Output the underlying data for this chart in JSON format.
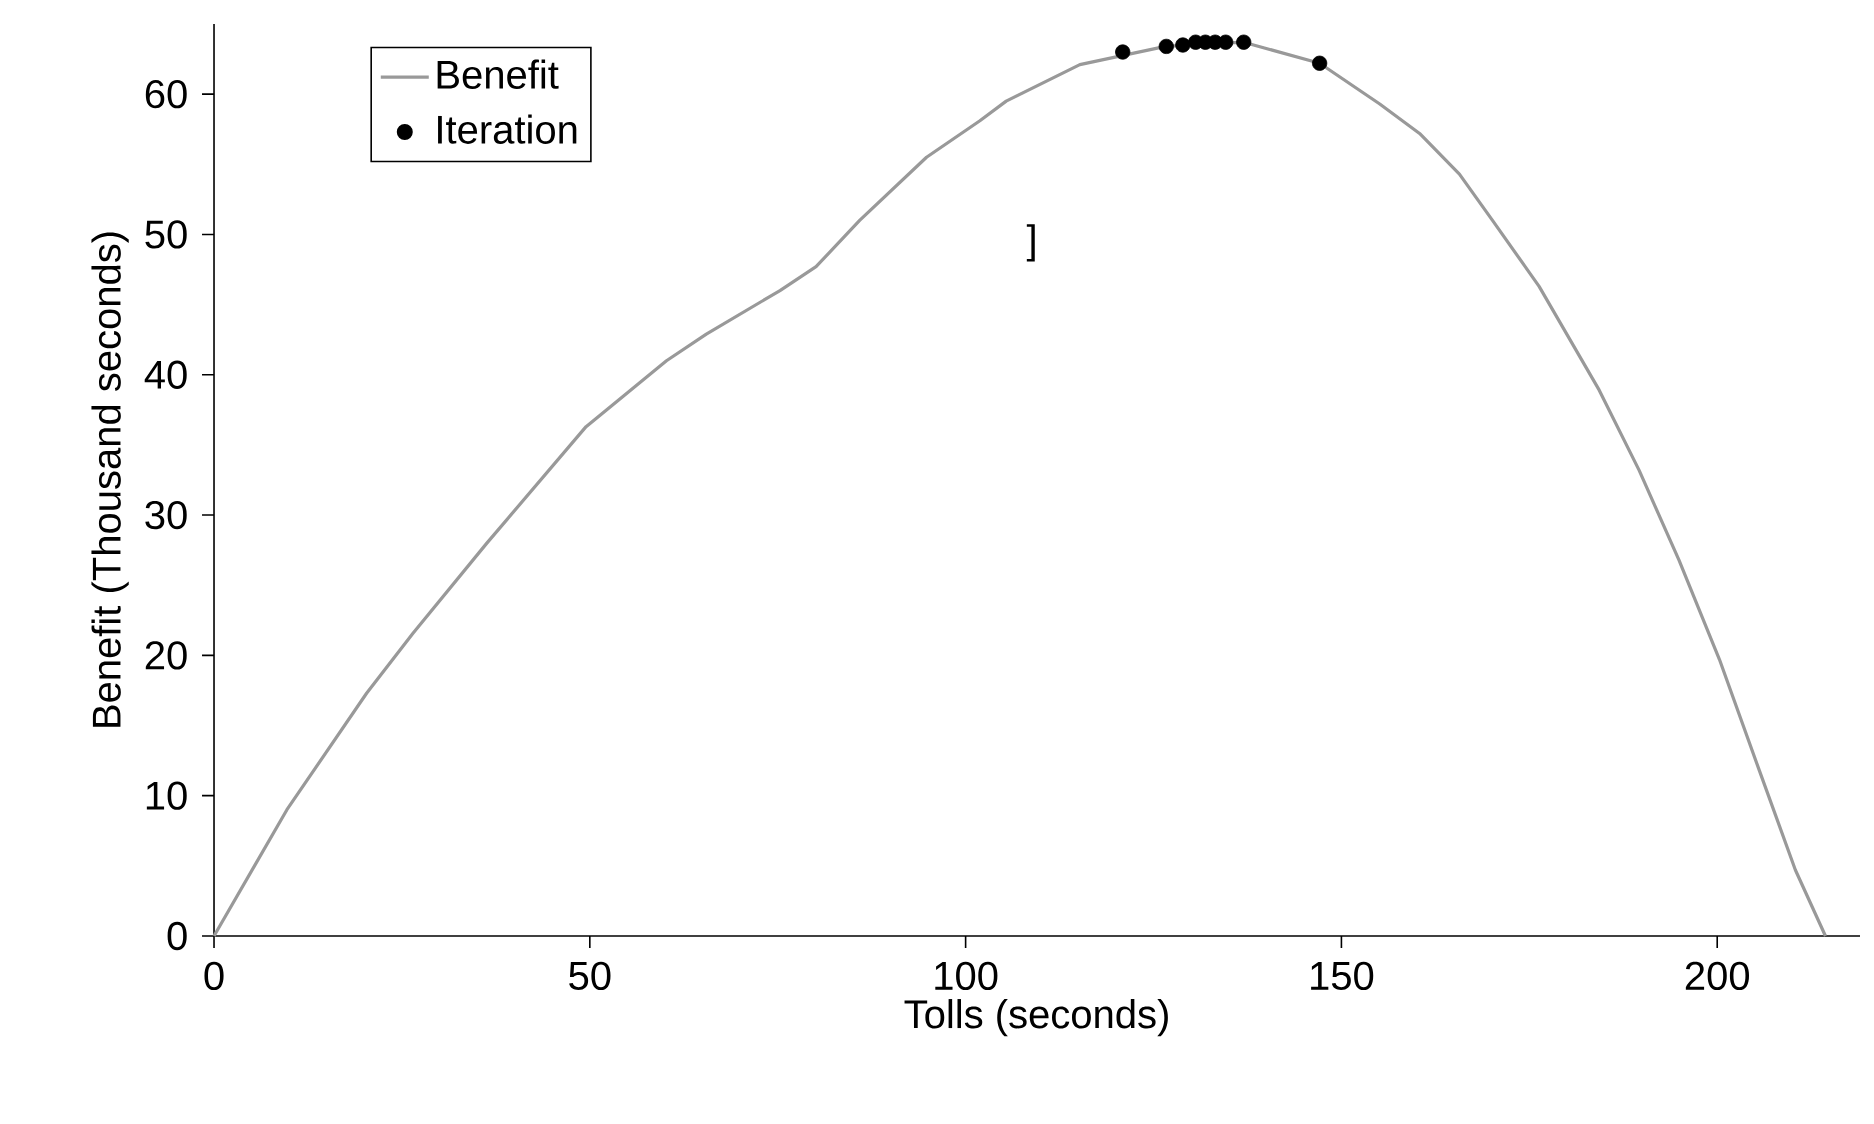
{
  "chart_data": {
    "type": "line",
    "xlabel": "Tolls (seconds)",
    "ylabel": "Benefit (Thousand seconds)",
    "xlim": [
      0,
      219
    ],
    "ylim": [
      0,
      65
    ],
    "xticks": [
      0,
      50,
      100,
      150,
      200
    ],
    "yticks": [
      0,
      10,
      20,
      30,
      40,
      50,
      60
    ],
    "legend": "top left",
    "annotations": [
      "]"
    ],
    "series": [
      {
        "name": "Benefit",
        "type": "line",
        "color": "#999999",
        "marker": "none",
        "x": [
          0,
          9.7,
          20.3,
          26.5,
          36.3,
          49.5,
          60.2,
          65.5,
          75.3,
          80.1,
          85.9,
          94.8,
          101.9,
          105.4,
          115.2,
          126.6,
          137,
          147.1,
          155.1,
          160.4,
          165.7,
          170.1,
          176.3,
          184.3,
          189.6,
          194.9,
          200.3,
          205.6,
          210.4,
          214.4
        ],
        "values": [
          0,
          9.0,
          17.3,
          21.6,
          28.0,
          36.3,
          41.0,
          42.9,
          46.0,
          47.7,
          51.0,
          55.5,
          58.1,
          59.5,
          62.1,
          63.4,
          63.7,
          62.2,
          59.3,
          57.2,
          54.3,
          51.0,
          46.3,
          38.9,
          33.2,
          26.8,
          19.7,
          11.8,
          4.7,
          0
        ]
      },
      {
        "name": "Iteration",
        "type": "scatter",
        "color": "#000000",
        "marker": "circle",
        "x": [
          120.9,
          126.7,
          128.9,
          130.6,
          131.9,
          133.2,
          134.6,
          137.0,
          147.1
        ],
        "values": [
          63.0,
          63.4,
          63.5,
          63.7,
          63.7,
          63.7,
          63.7,
          63.7,
          62.2
        ]
      }
    ]
  }
}
